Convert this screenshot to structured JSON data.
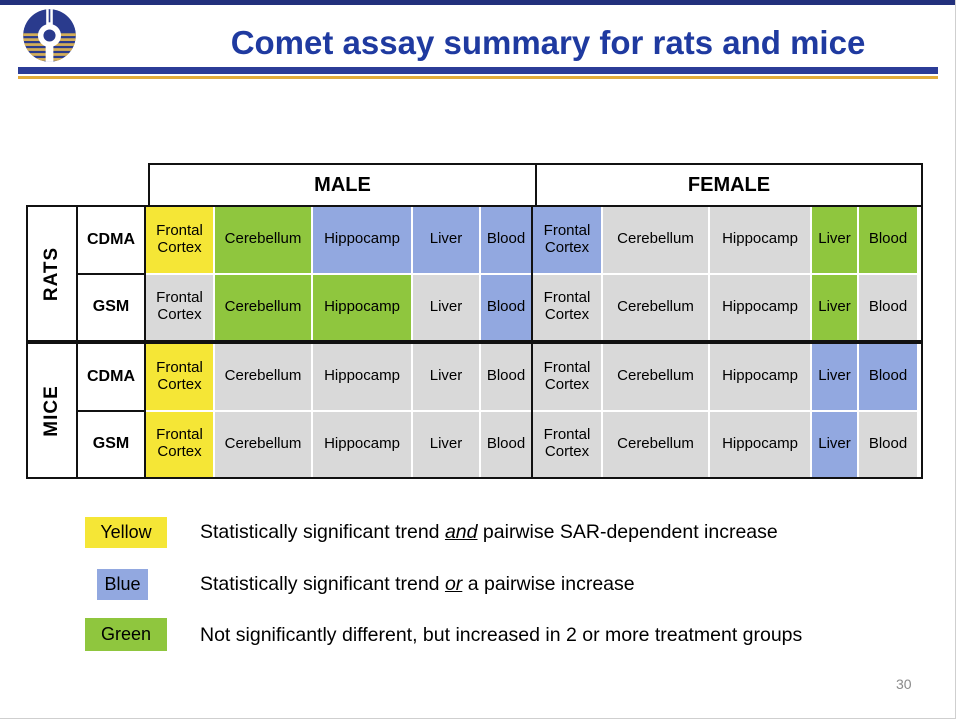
{
  "slide": {
    "title": "Comet assay summary for rats and mice",
    "page_number": "30"
  },
  "logo": {
    "name": "institute-emblem-logo"
  },
  "colors": {
    "yellow": "#f5e636",
    "green": "#8fc63e",
    "blue": "#92a8e0",
    "gray": "#d9d9d9",
    "navy": "#1f3aa0",
    "gold": "#e2ac3b"
  },
  "table": {
    "sex_headers": {
      "male": "MALE",
      "female": "FEMALE"
    },
    "tissues": [
      "Frontal Cortex",
      "Cerebellum",
      "Hippocamp",
      "Liver",
      "Blood"
    ],
    "groups": [
      {
        "species": "RATS",
        "rows": [
          {
            "modulation": "CDMA",
            "male": [
              "yellow",
              "green",
              "blue",
              "blue",
              "blue"
            ],
            "female": [
              "blue",
              "gray",
              "gray",
              "green",
              "green"
            ]
          },
          {
            "modulation": "GSM",
            "male": [
              "gray",
              "green",
              "green",
              "gray",
              "blue"
            ],
            "female": [
              "gray",
              "gray",
              "gray",
              "green",
              "gray"
            ]
          }
        ]
      },
      {
        "species": "MICE",
        "rows": [
          {
            "modulation": "CDMA",
            "male": [
              "yellow",
              "gray",
              "gray",
              "gray",
              "gray"
            ],
            "female": [
              "gray",
              "gray",
              "gray",
              "blue",
              "blue"
            ]
          },
          {
            "modulation": "GSM",
            "male": [
              "yellow",
              "gray",
              "gray",
              "gray",
              "gray"
            ],
            "female": [
              "gray",
              "gray",
              "gray",
              "blue",
              "gray"
            ]
          }
        ]
      }
    ]
  },
  "legend": [
    {
      "key": "yellow",
      "label": "Yellow",
      "text_before": "Statistically significant trend ",
      "emph": "and",
      "text_after": " pairwise SAR-dependent increase"
    },
    {
      "key": "blue",
      "label": "Blue",
      "text_before": "Statistically significant trend ",
      "emph": "or",
      "text_after": " a pairwise increase"
    },
    {
      "key": "green",
      "label": "Green",
      "text_before": "Not significantly different, but increased in 2 or more treatment groups",
      "emph": "",
      "text_after": ""
    }
  ]
}
